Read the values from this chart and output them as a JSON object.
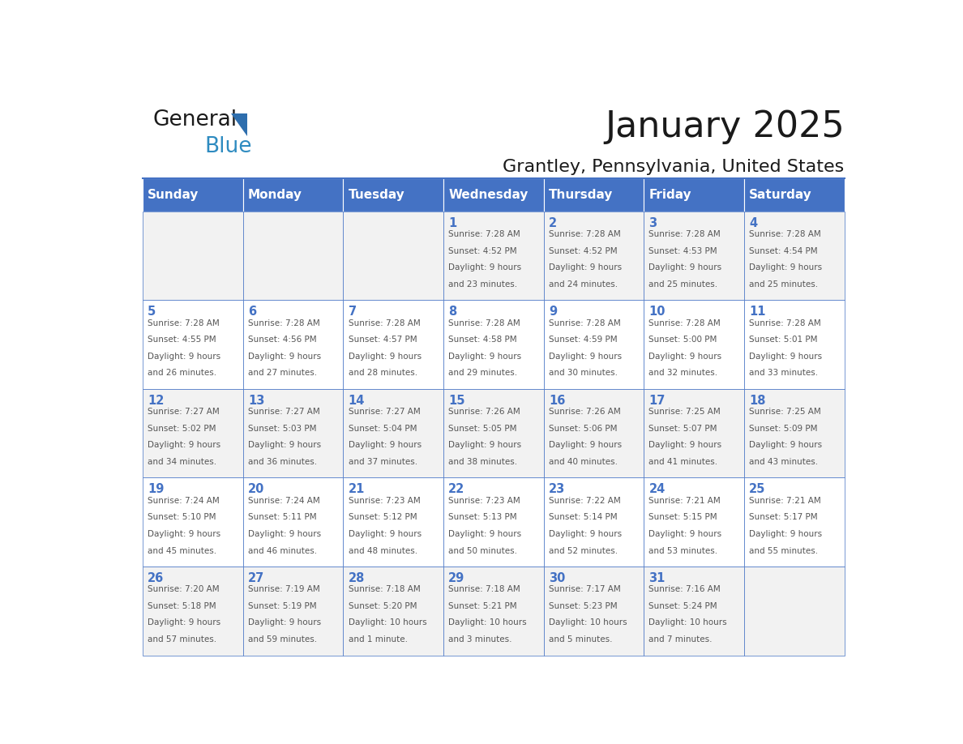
{
  "title": "January 2025",
  "subtitle": "Grantley, Pennsylvania, United States",
  "days_of_week": [
    "Sunday",
    "Monday",
    "Tuesday",
    "Wednesday",
    "Thursday",
    "Friday",
    "Saturday"
  ],
  "header_bg": "#4472C4",
  "header_text_color": "#FFFFFF",
  "cell_bg_odd": "#F2F2F2",
  "cell_bg_even": "#FFFFFF",
  "cell_border_color": "#4472C4",
  "text_color": "#555555",
  "title_color": "#1a1a1a",
  "logo_general_color": "#1a1a1a",
  "logo_blue_color": "#2E8BC0",
  "logo_triangle_color": "#2E6EAD",
  "calendar_data": [
    [
      {
        "day": null,
        "sunrise": null,
        "sunset": null,
        "daylight": null
      },
      {
        "day": null,
        "sunrise": null,
        "sunset": null,
        "daylight": null
      },
      {
        "day": null,
        "sunrise": null,
        "sunset": null,
        "daylight": null
      },
      {
        "day": 1,
        "sunrise": "7:28 AM",
        "sunset": "4:52 PM",
        "daylight_line1": "Daylight: 9 hours",
        "daylight_line2": "and 23 minutes."
      },
      {
        "day": 2,
        "sunrise": "7:28 AM",
        "sunset": "4:52 PM",
        "daylight_line1": "Daylight: 9 hours",
        "daylight_line2": "and 24 minutes."
      },
      {
        "day": 3,
        "sunrise": "7:28 AM",
        "sunset": "4:53 PM",
        "daylight_line1": "Daylight: 9 hours",
        "daylight_line2": "and 25 minutes."
      },
      {
        "day": 4,
        "sunrise": "7:28 AM",
        "sunset": "4:54 PM",
        "daylight_line1": "Daylight: 9 hours",
        "daylight_line2": "and 25 minutes."
      }
    ],
    [
      {
        "day": 5,
        "sunrise": "7:28 AM",
        "sunset": "4:55 PM",
        "daylight_line1": "Daylight: 9 hours",
        "daylight_line2": "and 26 minutes."
      },
      {
        "day": 6,
        "sunrise": "7:28 AM",
        "sunset": "4:56 PM",
        "daylight_line1": "Daylight: 9 hours",
        "daylight_line2": "and 27 minutes."
      },
      {
        "day": 7,
        "sunrise": "7:28 AM",
        "sunset": "4:57 PM",
        "daylight_line1": "Daylight: 9 hours",
        "daylight_line2": "and 28 minutes."
      },
      {
        "day": 8,
        "sunrise": "7:28 AM",
        "sunset": "4:58 PM",
        "daylight_line1": "Daylight: 9 hours",
        "daylight_line2": "and 29 minutes."
      },
      {
        "day": 9,
        "sunrise": "7:28 AM",
        "sunset": "4:59 PM",
        "daylight_line1": "Daylight: 9 hours",
        "daylight_line2": "and 30 minutes."
      },
      {
        "day": 10,
        "sunrise": "7:28 AM",
        "sunset": "5:00 PM",
        "daylight_line1": "Daylight: 9 hours",
        "daylight_line2": "and 32 minutes."
      },
      {
        "day": 11,
        "sunrise": "7:28 AM",
        "sunset": "5:01 PM",
        "daylight_line1": "Daylight: 9 hours",
        "daylight_line2": "and 33 minutes."
      }
    ],
    [
      {
        "day": 12,
        "sunrise": "7:27 AM",
        "sunset": "5:02 PM",
        "daylight_line1": "Daylight: 9 hours",
        "daylight_line2": "and 34 minutes."
      },
      {
        "day": 13,
        "sunrise": "7:27 AM",
        "sunset": "5:03 PM",
        "daylight_line1": "Daylight: 9 hours",
        "daylight_line2": "and 36 minutes."
      },
      {
        "day": 14,
        "sunrise": "7:27 AM",
        "sunset": "5:04 PM",
        "daylight_line1": "Daylight: 9 hours",
        "daylight_line2": "and 37 minutes."
      },
      {
        "day": 15,
        "sunrise": "7:26 AM",
        "sunset": "5:05 PM",
        "daylight_line1": "Daylight: 9 hours",
        "daylight_line2": "and 38 minutes."
      },
      {
        "day": 16,
        "sunrise": "7:26 AM",
        "sunset": "5:06 PM",
        "daylight_line1": "Daylight: 9 hours",
        "daylight_line2": "and 40 minutes."
      },
      {
        "day": 17,
        "sunrise": "7:25 AM",
        "sunset": "5:07 PM",
        "daylight_line1": "Daylight: 9 hours",
        "daylight_line2": "and 41 minutes."
      },
      {
        "day": 18,
        "sunrise": "7:25 AM",
        "sunset": "5:09 PM",
        "daylight_line1": "Daylight: 9 hours",
        "daylight_line2": "and 43 minutes."
      }
    ],
    [
      {
        "day": 19,
        "sunrise": "7:24 AM",
        "sunset": "5:10 PM",
        "daylight_line1": "Daylight: 9 hours",
        "daylight_line2": "and 45 minutes."
      },
      {
        "day": 20,
        "sunrise": "7:24 AM",
        "sunset": "5:11 PM",
        "daylight_line1": "Daylight: 9 hours",
        "daylight_line2": "and 46 minutes."
      },
      {
        "day": 21,
        "sunrise": "7:23 AM",
        "sunset": "5:12 PM",
        "daylight_line1": "Daylight: 9 hours",
        "daylight_line2": "and 48 minutes."
      },
      {
        "day": 22,
        "sunrise": "7:23 AM",
        "sunset": "5:13 PM",
        "daylight_line1": "Daylight: 9 hours",
        "daylight_line2": "and 50 minutes."
      },
      {
        "day": 23,
        "sunrise": "7:22 AM",
        "sunset": "5:14 PM",
        "daylight_line1": "Daylight: 9 hours",
        "daylight_line2": "and 52 minutes."
      },
      {
        "day": 24,
        "sunrise": "7:21 AM",
        "sunset": "5:15 PM",
        "daylight_line1": "Daylight: 9 hours",
        "daylight_line2": "and 53 minutes."
      },
      {
        "day": 25,
        "sunrise": "7:21 AM",
        "sunset": "5:17 PM",
        "daylight_line1": "Daylight: 9 hours",
        "daylight_line2": "and 55 minutes."
      }
    ],
    [
      {
        "day": 26,
        "sunrise": "7:20 AM",
        "sunset": "5:18 PM",
        "daylight_line1": "Daylight: 9 hours",
        "daylight_line2": "and 57 minutes."
      },
      {
        "day": 27,
        "sunrise": "7:19 AM",
        "sunset": "5:19 PM",
        "daylight_line1": "Daylight: 9 hours",
        "daylight_line2": "and 59 minutes."
      },
      {
        "day": 28,
        "sunrise": "7:18 AM",
        "sunset": "5:20 PM",
        "daylight_line1": "Daylight: 10 hours",
        "daylight_line2": "and 1 minute."
      },
      {
        "day": 29,
        "sunrise": "7:18 AM",
        "sunset": "5:21 PM",
        "daylight_line1": "Daylight: 10 hours",
        "daylight_line2": "and 3 minutes."
      },
      {
        "day": 30,
        "sunrise": "7:17 AM",
        "sunset": "5:23 PM",
        "daylight_line1": "Daylight: 10 hours",
        "daylight_line2": "and 5 minutes."
      },
      {
        "day": 31,
        "sunrise": "7:16 AM",
        "sunset": "5:24 PM",
        "daylight_line1": "Daylight: 10 hours",
        "daylight_line2": "and 7 minutes."
      },
      {
        "day": null,
        "sunrise": null,
        "sunset": null,
        "daylight_line1": null,
        "daylight_line2": null
      }
    ]
  ]
}
